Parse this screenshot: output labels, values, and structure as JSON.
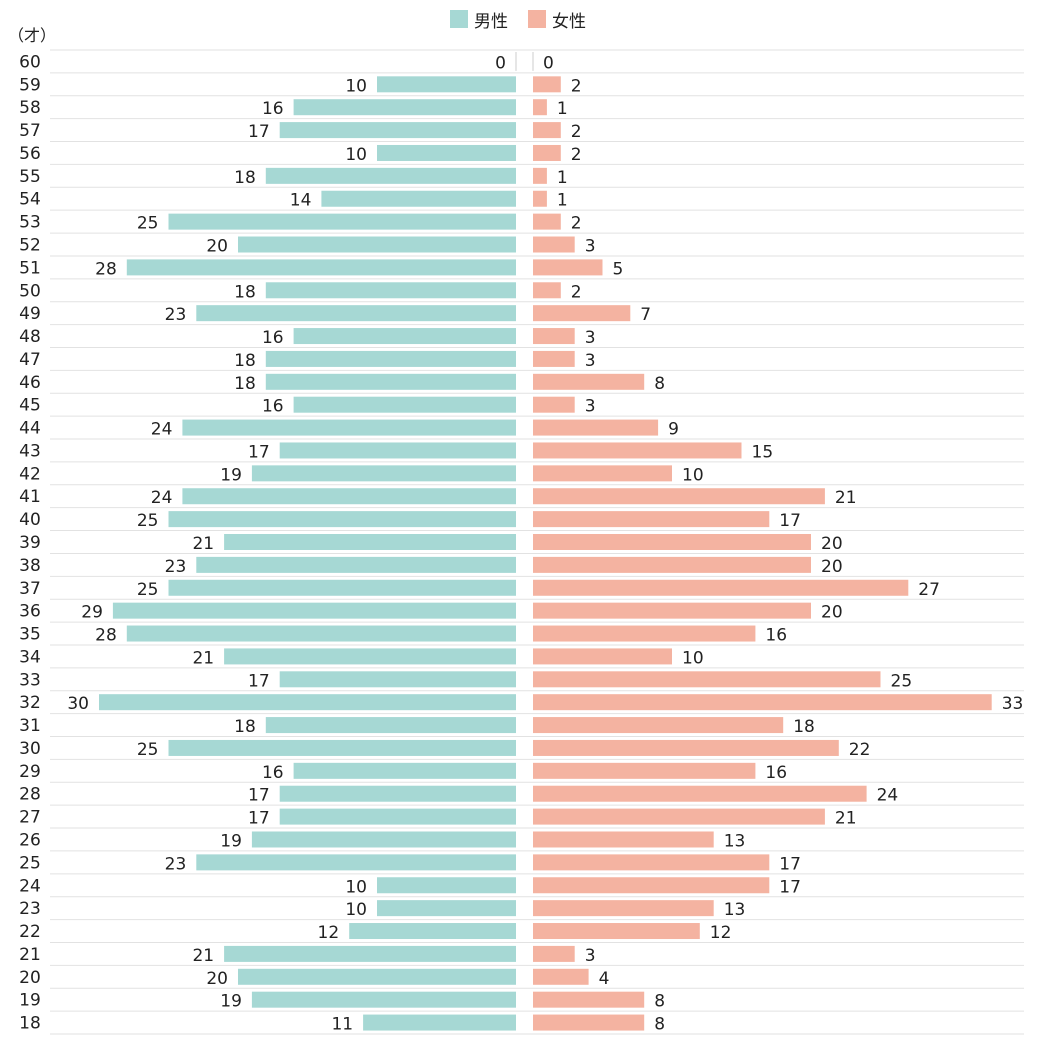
{
  "chart_data": {
    "type": "bar",
    "orientation": "horizontal",
    "layout": "population-pyramid",
    "y_unit_label": "（才）",
    "categories": [
      "60",
      "59",
      "58",
      "57",
      "56",
      "55",
      "54",
      "53",
      "52",
      "51",
      "50",
      "49",
      "48",
      "47",
      "46",
      "45",
      "44",
      "43",
      "42",
      "41",
      "40",
      "39",
      "38",
      "37",
      "36",
      "35",
      "34",
      "33",
      "32",
      "31",
      "30",
      "29",
      "28",
      "27",
      "26",
      "25",
      "24",
      "23",
      "22",
      "21",
      "20",
      "19",
      "18"
    ],
    "series": [
      {
        "name": "男性",
        "color": "#a6d8d4",
        "direction": "left",
        "values": [
          0,
          10,
          16,
          17,
          10,
          18,
          14,
          25,
          20,
          28,
          18,
          23,
          16,
          18,
          18,
          16,
          24,
          17,
          19,
          24,
          25,
          21,
          23,
          25,
          29,
          28,
          21,
          17,
          30,
          18,
          25,
          16,
          17,
          17,
          19,
          23,
          10,
          10,
          12,
          21,
          20,
          19,
          11
        ]
      },
      {
        "name": "女性",
        "color": "#f4b3a1",
        "direction": "right",
        "values": [
          0,
          2,
          1,
          2,
          2,
          1,
          1,
          2,
          3,
          5,
          2,
          7,
          3,
          3,
          8,
          3,
          9,
          15,
          10,
          21,
          17,
          20,
          20,
          27,
          20,
          16,
          10,
          25,
          33,
          18,
          22,
          16,
          24,
          21,
          13,
          17,
          17,
          13,
          12,
          3,
          4,
          8,
          8
        ]
      }
    ],
    "value_labels": true,
    "grid": "horizontal",
    "legend_position": "top-center"
  }
}
